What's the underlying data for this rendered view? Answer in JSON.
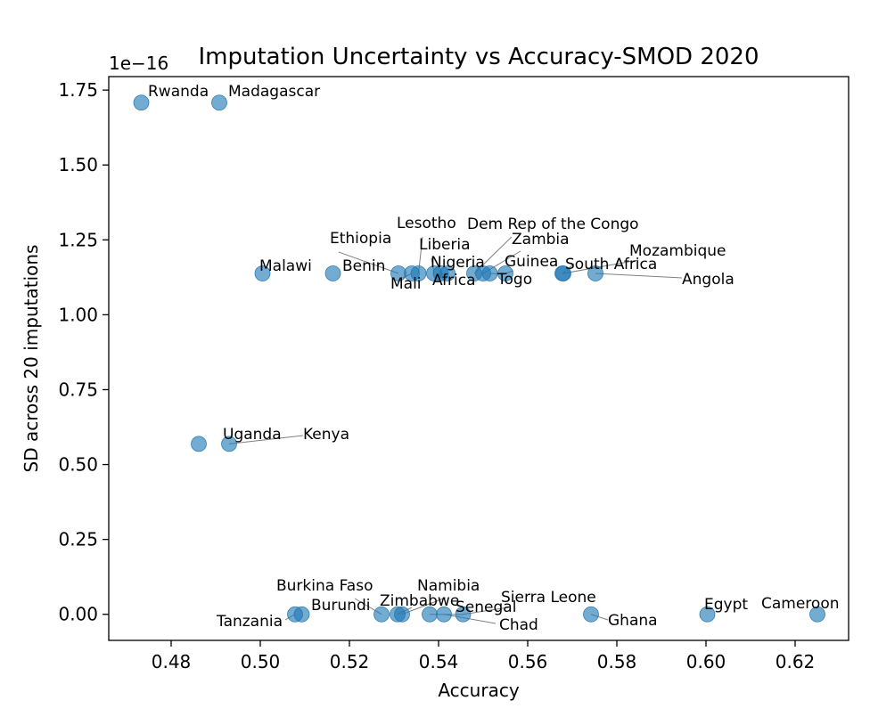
{
  "chart_data": {
    "type": "scatter",
    "title": "Imputation Uncertainty vs Accuracy-SMOD 2020",
    "xlabel": "Accuracy",
    "ylabel": "SD across 20 imputations",
    "y_scale_label": "1e−16",
    "xlim": [
      0.466,
      0.632
    ],
    "ylim": [
      -0.087,
      1.795
    ],
    "x_ticks": [
      0.48,
      0.5,
      0.52,
      0.54,
      0.56,
      0.58,
      0.6,
      0.62
    ],
    "x_tick_labels": [
      "0.48",
      "0.50",
      "0.52",
      "0.54",
      "0.56",
      "0.58",
      "0.60",
      "0.62"
    ],
    "y_ticks": [
      0.0,
      0.25,
      0.5,
      0.75,
      1.0,
      1.25,
      1.5,
      1.75
    ],
    "y_tick_labels": [
      "0.00",
      "0.25",
      "0.50",
      "0.75",
      "1.00",
      "1.25",
      "1.50",
      "1.75"
    ],
    "marker_color": "#1f77b4",
    "points": [
      {
        "name": "Rwanda",
        "x": 0.4733,
        "y": 1.708
      },
      {
        "name": "Madagascar",
        "x": 0.4908,
        "y": 1.708
      },
      {
        "name": "Malawi",
        "x": 0.5005,
        "y": 1.138
      },
      {
        "name": "Benin",
        "x": 0.5163,
        "y": 1.138
      },
      {
        "name": "Ethiopia",
        "x": 0.531,
        "y": 1.138
      },
      {
        "name": "Mali",
        "x": 0.534,
        "y": 1.138
      },
      {
        "name": "Lesotho",
        "x": 0.5355,
        "y": 1.138
      },
      {
        "name": "Liberia",
        "x": 0.539,
        "y": 1.138
      },
      {
        "name": "Nigeria",
        "x": 0.5405,
        "y": 1.138
      },
      {
        "name": "Africa",
        "x": 0.542,
        "y": 1.138
      },
      {
        "name": "Dem Rep of the Congo",
        "x": 0.548,
        "y": 1.138
      },
      {
        "name": "Zambia",
        "x": 0.55,
        "y": 1.138
      },
      {
        "name": "Togo",
        "x": 0.5515,
        "y": 1.138
      },
      {
        "name": "Guinea",
        "x": 0.555,
        "y": 1.138
      },
      {
        "name": "South Africa",
        "x": 0.5678,
        "y": 1.138
      },
      {
        "name": "Mozambique",
        "x": 0.568,
        "y": 1.138
      },
      {
        "name": "Angola",
        "x": 0.5752,
        "y": 1.138
      },
      {
        "name": "Uganda",
        "x": 0.4862,
        "y": 0.569
      },
      {
        "name": "Kenya",
        "x": 0.493,
        "y": 0.569
      },
      {
        "name": "Tanzania",
        "x": 0.5078,
        "y": 0.0
      },
      {
        "name": "Burundi",
        "x": 0.5093,
        "y": 0.0
      },
      {
        "name": "Burkina Faso",
        "x": 0.5272,
        "y": 0.0
      },
      {
        "name": "Zimbabwe",
        "x": 0.5308,
        "y": 0.0
      },
      {
        "name": "Namibia",
        "x": 0.5318,
        "y": 0.0
      },
      {
        "name": "Senegal",
        "x": 0.538,
        "y": 0.0
      },
      {
        "name": "Chad",
        "x": 0.5412,
        "y": 0.0
      },
      {
        "name": "Sierra Leone",
        "x": 0.5455,
        "y": 0.0
      },
      {
        "name": "Ghana",
        "x": 0.5742,
        "y": 0.0
      },
      {
        "name": "Egypt",
        "x": 0.6003,
        "y": 0.0
      },
      {
        "name": "Cameroon",
        "x": 0.625,
        "y": 0.0
      }
    ]
  }
}
